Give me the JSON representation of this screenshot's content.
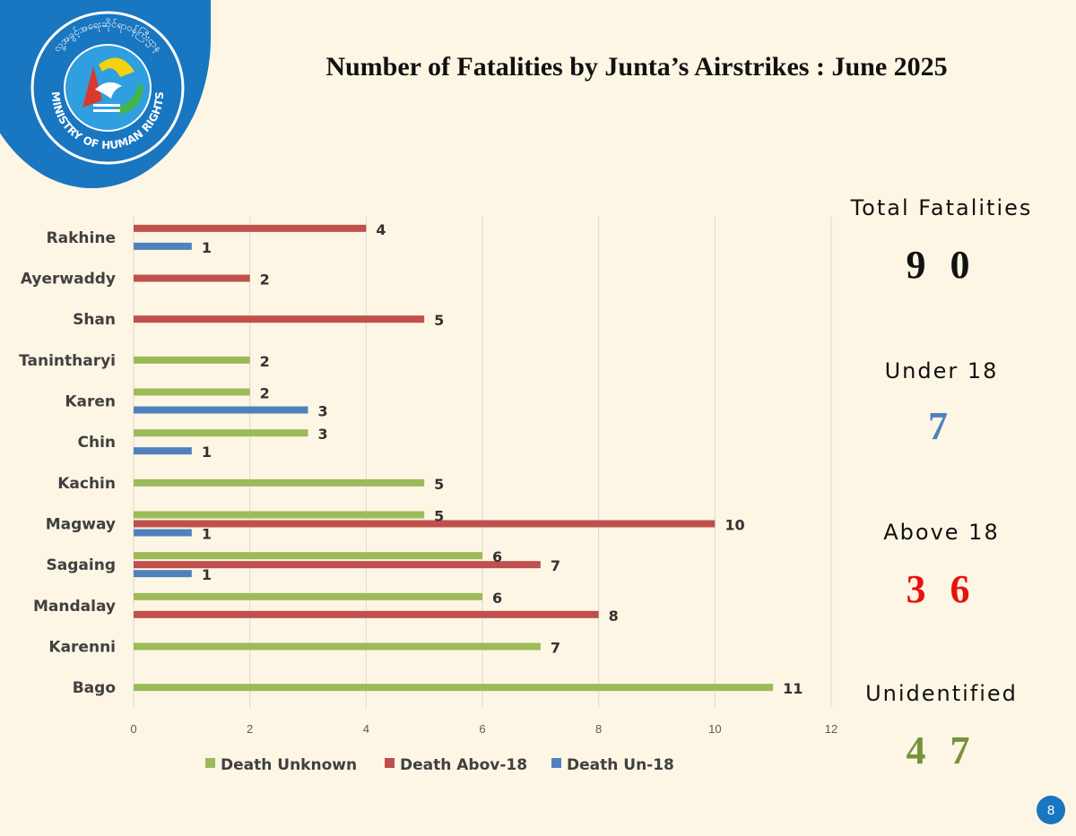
{
  "logo": {
    "org_text": "MINISTRY OF HUMAN RIGHTS",
    "script_text": "လူ့အခွင့်အရေးဆိုင်ရာဝန်ကြီးဌာန"
  },
  "colors": {
    "badge": "#1976c0",
    "unknown": "#9bbb59",
    "above18": "#c0504d",
    "under18": "#4f81bd",
    "under18_value": "#4f81bd",
    "above18_value": "#e8110f",
    "unidentified_value": "#76923c"
  },
  "chart_data": {
    "type": "bar",
    "orientation": "horizontal",
    "title": "Number of Fatalities by Junta’s Airstrikes : June 2025",
    "categories": [
      "Rakhine",
      "Ayerwaddy",
      "Shan",
      "Tanintharyi",
      "Karen",
      "Chin",
      "Kachin",
      "Magway",
      "Sagaing",
      "Mandalay",
      "Karenni",
      "Bago"
    ],
    "series": [
      {
        "name": "Death Unknown",
        "color": "#9bbb59",
        "values": [
          null,
          null,
          null,
          2,
          2,
          3,
          5,
          5,
          6,
          6,
          7,
          11
        ]
      },
      {
        "name": "Death Abov-18",
        "color": "#c0504d",
        "values": [
          4,
          2,
          5,
          null,
          null,
          null,
          null,
          10,
          7,
          8,
          null,
          null
        ]
      },
      {
        "name": "Death Un-18",
        "color": "#4f81bd",
        "values": [
          1,
          null,
          null,
          null,
          3,
          1,
          null,
          1,
          1,
          null,
          null,
          null
        ]
      }
    ],
    "xlim": [
      0,
      12
    ],
    "xticks": [
      0,
      2,
      4,
      6,
      8,
      10,
      12
    ],
    "grid": true,
    "legend": "bottom"
  },
  "stats": [
    {
      "label": "Total Fatalities",
      "value": "9 0",
      "color": "#111111"
    },
    {
      "label": "Under 18",
      "value": "7",
      "color": "#4f81bd"
    },
    {
      "label": "Above 18",
      "value": "3 6",
      "color": "#e8110f"
    },
    {
      "label": "Unidentified",
      "value": "4 7",
      "color": "#76923c"
    }
  ],
  "page_number": "8"
}
